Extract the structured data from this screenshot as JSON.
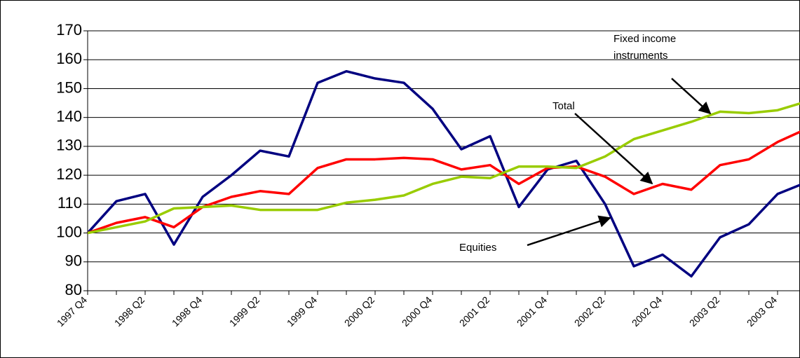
{
  "chart_data": {
    "type": "line",
    "categories": [
      "1997 Q4",
      null,
      "1998 Q2",
      null,
      "1998 Q4",
      null,
      "1999 Q2",
      null,
      "1999 Q4",
      null,
      "2000 Q2",
      null,
      "2000 Q4",
      null,
      "2001 Q2",
      null,
      "2001 Q4",
      null,
      "2002 Q2",
      null,
      "2002 Q4",
      null,
      "2003 Q2",
      null,
      "2003 Q4",
      null
    ],
    "series": [
      {
        "name": "Equities",
        "color": "#000080",
        "values": [
          100,
          111,
          113.5,
          96,
          112.5,
          120,
          128.5,
          126.5,
          152,
          156,
          153.5,
          152,
          143,
          129,
          133.5,
          109,
          122,
          125,
          110,
          88.5,
          92.5,
          85,
          98.5,
          103,
          113.5,
          117.5
        ]
      },
      {
        "name": "Total",
        "color": "#ff0000",
        "values": [
          100,
          103.5,
          105.5,
          102,
          109,
          112.5,
          114.5,
          113.5,
          122.5,
          125.5,
          125.5,
          126,
          125.5,
          122,
          123.5,
          117,
          122.5,
          123,
          119.5,
          113.5,
          117,
          115,
          123.5,
          125.5,
          131.5,
          136
        ]
      },
      {
        "name": "Fixed income instruments",
        "color": "#99cc00",
        "values": [
          100,
          102,
          104,
          108.5,
          109,
          109.5,
          108,
          108,
          108,
          110.5,
          111.5,
          113,
          117,
          119.5,
          119,
          123,
          123,
          122.5,
          126.5,
          132.5,
          135.5,
          138.5,
          142,
          141.5,
          142.5,
          145.5
        ]
      }
    ],
    "annotations": [
      {
        "lines": [
          "Fixed income",
          "instruments"
        ]
      },
      {
        "lines": [
          "Total"
        ]
      },
      {
        "lines": [
          "Equities"
        ]
      }
    ],
    "ylim": [
      80,
      170
    ],
    "yticks": [
      80,
      90,
      100,
      110,
      120,
      130,
      140,
      150,
      160,
      170
    ],
    "grid": true
  }
}
